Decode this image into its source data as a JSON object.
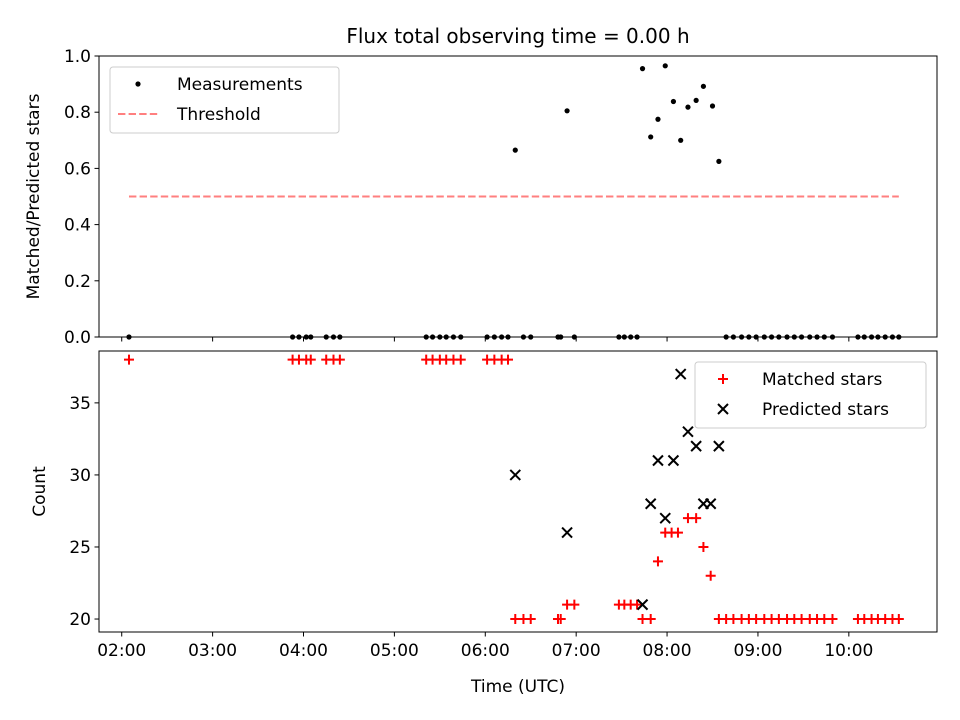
{
  "chart_data": [
    {
      "type": "scatter",
      "title": "Flux total observing time = 0.00 h",
      "ylabel": "Matched/Predicted stars",
      "xlabel": "",
      "xlim": [
        1.75,
        10.97
      ],
      "ylim": [
        0,
        1.0
      ],
      "yticks": [
        "0.0",
        "0.2",
        "0.4",
        "0.6",
        "0.8",
        "1.0"
      ],
      "legend_position": "top-left",
      "series": [
        {
          "name": "Measurements",
          "marker": "dot",
          "color": "#000000",
          "x": [
            2.08,
            3.88,
            3.95,
            4.03,
            4.08,
            4.25,
            4.33,
            4.4,
            5.35,
            5.42,
            5.5,
            5.57,
            5.65,
            5.73,
            6.02,
            6.1,
            6.18,
            6.25,
            6.33,
            6.42,
            6.5,
            6.8,
            6.83,
            6.9,
            6.98,
            7.47,
            7.53,
            7.6,
            7.67,
            7.73,
            7.82,
            7.9,
            7.98,
            8.07,
            8.15,
            8.23,
            8.32,
            8.4,
            8.5,
            8.57,
            8.65,
            8.73,
            8.82,
            8.9,
            8.98,
            9.07,
            9.15,
            9.23,
            9.32,
            9.4,
            9.48,
            9.57,
            9.65,
            9.73,
            9.82,
            10.1,
            10.17,
            10.25,
            10.32,
            10.4,
            10.48,
            10.55
          ],
          "y": [
            0,
            0,
            0,
            0,
            0,
            0,
            0,
            0,
            0,
            0,
            0,
            0,
            0,
            0,
            0,
            0,
            0,
            0,
            0.665,
            0,
            0,
            0,
            0,
            0.805,
            0,
            0,
            0,
            0,
            0,
            0.955,
            0.712,
            0.775,
            0.965,
            0.838,
            0.7,
            0.818,
            0.842,
            0.892,
            0.822,
            0.625,
            0,
            0,
            0,
            0,
            0,
            0,
            0,
            0,
            0,
            0,
            0,
            0,
            0,
            0,
            0,
            0,
            0,
            0,
            0,
            0,
            0,
            0
          ]
        },
        {
          "name": "Threshold",
          "marker": "dashed-line",
          "color": "#ff7f7f",
          "x": [
            2.08,
            10.55
          ],
          "y": [
            0.5,
            0.5
          ]
        }
      ]
    },
    {
      "type": "scatter",
      "title": "",
      "ylabel": "Count",
      "xlabel": "Time (UTC)",
      "xlim": [
        1.75,
        10.97
      ],
      "ylim": [
        19.1,
        38.6
      ],
      "yticks": [
        "20",
        "25",
        "30",
        "35"
      ],
      "xticks": [
        "02:00",
        "03:00",
        "04:00",
        "05:00",
        "06:00",
        "07:00",
        "08:00",
        "09:00",
        "10:00"
      ],
      "legend_position": "top-right",
      "series": [
        {
          "name": "Matched stars",
          "marker": "plus",
          "color": "#ff0000",
          "x": [
            2.08,
            3.88,
            3.95,
            4.03,
            4.08,
            4.25,
            4.33,
            4.4,
            5.35,
            5.42,
            5.5,
            5.57,
            5.65,
            5.73,
            6.02,
            6.1,
            6.18,
            6.25,
            6.33,
            6.42,
            6.5,
            6.8,
            6.83,
            6.9,
            6.98,
            7.47,
            7.53,
            7.6,
            7.67,
            7.73,
            7.82,
            7.9,
            7.98,
            8.05,
            8.12,
            8.23,
            8.32,
            8.4,
            8.48,
            8.57,
            8.65,
            8.73,
            8.82,
            8.9,
            8.98,
            9.07,
            9.15,
            9.23,
            9.32,
            9.4,
            9.48,
            9.57,
            9.65,
            9.73,
            9.82,
            10.1,
            10.17,
            10.25,
            10.32,
            10.4,
            10.48,
            10.55
          ],
          "y": [
            38,
            38,
            38,
            38,
            38,
            38,
            38,
            38,
            38,
            38,
            38,
            38,
            38,
            38,
            38,
            38,
            38,
            38,
            20,
            20,
            20,
            20,
            20,
            21,
            21,
            21,
            21,
            21,
            21,
            20,
            20,
            24,
            26,
            26,
            26,
            27,
            27,
            25,
            23,
            20,
            20,
            20,
            20,
            20,
            20,
            20,
            20,
            20,
            20,
            20,
            20,
            20,
            20,
            20,
            20,
            20,
            20,
            20,
            20,
            20,
            20,
            20
          ]
        },
        {
          "name": "Predicted stars",
          "marker": "x",
          "color": "#000000",
          "x": [
            6.33,
            6.9,
            7.73,
            7.82,
            7.9,
            7.98,
            8.07,
            8.15,
            8.23,
            8.32,
            8.4,
            8.48,
            8.57
          ],
          "y": [
            30,
            26,
            21,
            28,
            31,
            27,
            31,
            37,
            33,
            32,
            28,
            28,
            32
          ]
        }
      ]
    }
  ]
}
